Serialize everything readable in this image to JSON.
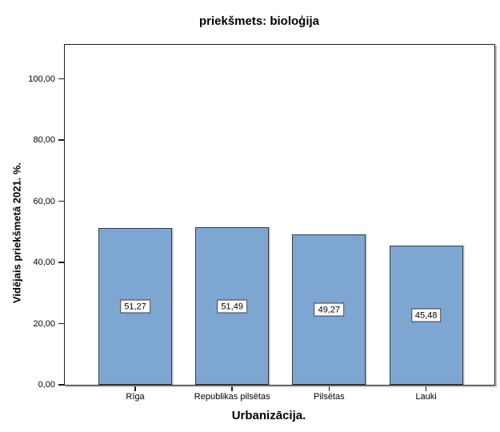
{
  "colors": {
    "bar_fill": "#7EA6D2",
    "bar_border": "#3A3A40",
    "frame": "#1F1F1F"
  },
  "chart_data": {
    "type": "bar",
    "title": "priekšmets: bioloģija",
    "xlabel": "Urbanizācija.",
    "ylabel": "Vidējais priekšmetā 2021. %.",
    "categories": [
      "Rīga",
      "Republikas pilsētas",
      "Pilsētas",
      "Lauki"
    ],
    "values": [
      51.27,
      51.49,
      49.27,
      45.48
    ],
    "value_labels": [
      "51,27",
      "51,49",
      "49,27",
      "45,48"
    ],
    "y_ticks": [
      {
        "value": 0,
        "label": "0,00"
      },
      {
        "value": 20,
        "label": "20,00"
      },
      {
        "value": 40,
        "label": "40,00"
      },
      {
        "value": 60,
        "label": "60,00"
      },
      {
        "value": 80,
        "label": "80,00"
      },
      {
        "value": 100,
        "label": "100,00"
      }
    ],
    "ylim": [
      0,
      111
    ],
    "grid": false,
    "legend": null
  }
}
